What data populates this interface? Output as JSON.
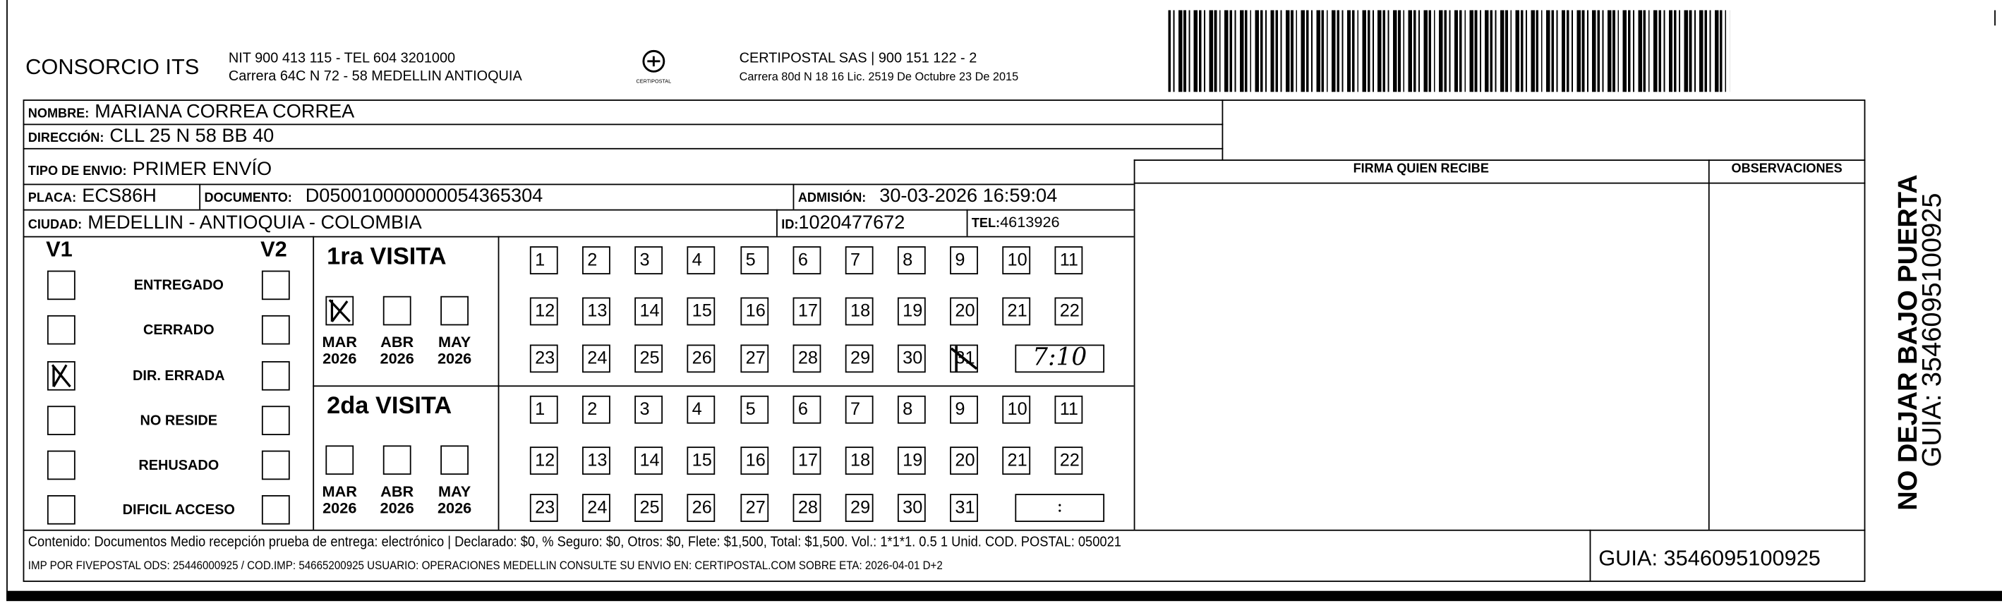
{
  "header": {
    "company": "CONSORCIO ITS",
    "company_line1": "NIT 900 413 115 - TEL 604 3201000",
    "company_line2": "Carrera 64C N 72 - 58 MEDELLIN ANTIOQUIA",
    "logo_text": "CERTIPOSTAL",
    "carrier_line1": "CERTIPOSTAL SAS | 900 151 122 - 2",
    "carrier_line2": "Carrera 80d N 18 16  Lic. 2519 De Octubre 23 De 2015",
    "barcode_icon": "barcode-icon"
  },
  "fields": {
    "nombre_label": "NOMBRE:",
    "nombre": "MARIANA CORREA CORREA",
    "direccion_label": "DIRECCIÓN:",
    "direccion": "CLL 25 N 58 BB 40",
    "tipo_label": "TIPO DE ENVIO:",
    "tipo": "PRIMER ENVÍO",
    "placa_label": "PLACA:",
    "placa": "ECS86H",
    "documento_label": "DOCUMENTO:",
    "documento": "D050010000000054365304",
    "admision_label": "ADMISIÓN:",
    "admision": "30-03-2026 16:59:04",
    "ciudad_label": "CIUDAD:",
    "ciudad": "MEDELLIN - ANTIOQUIA - COLOMBIA",
    "id_label": "ID:",
    "id": "1020477672",
    "tel_label": "TEL:",
    "tel": "4613926"
  },
  "firma_header": "FIRMA QUIEN RECIBE",
  "observaciones_header": "OBSERVACIONES",
  "status": {
    "v1_label": "V1",
    "v2_label": "V2",
    "options": [
      "ENTREGADO",
      "CERRADO",
      "DIR. ERRADA",
      "NO RESIDE",
      "REHUSADO",
      "DIFICIL ACCESO"
    ],
    "v1_checked": "DIR. ERRADA"
  },
  "visits": [
    {
      "title": "1ra VISITA",
      "months": [
        {
          "m": "MAR",
          "y": "2026"
        },
        {
          "m": "ABR",
          "y": "2026"
        },
        {
          "m": "MAY",
          "y": "2026"
        }
      ],
      "checked_month": "MAR",
      "checked_day": "31",
      "time": "7:10"
    },
    {
      "title": "2da VISITA",
      "months": [
        {
          "m": "MAR",
          "y": "2026"
        },
        {
          "m": "ABR",
          "y": "2026"
        },
        {
          "m": "MAY",
          "y": "2026"
        }
      ],
      "checked_month": "",
      "checked_day": "",
      "time": ":"
    }
  ],
  "days": [
    "1",
    "2",
    "3",
    "4",
    "5",
    "6",
    "7",
    "8",
    "9",
    "10",
    "11",
    "12",
    "13",
    "14",
    "15",
    "16",
    "17",
    "18",
    "19",
    "20",
    "21",
    "22",
    "23",
    "24",
    "25",
    "26",
    "27",
    "28",
    "29",
    "30",
    "31"
  ],
  "footer": {
    "contenido": "Contenido: Documentos Medio recepción prueba de entrega: electrónico | Declarado: $0, % Seguro: $0, Otros: $0, Flete: $1,500, Total: $1,500. Vol.: 1*1*1. 0.5  1 Unid. COD. POSTAL: 050021",
    "imp": "IMP POR FIVEPOSTAL ODS: 25446000925 / COD.IMP: 54665200925 USUARIO: OPERACIONES MEDELLIN CONSULTE SU ENVIO EN: CERTIPOSTAL.COM SOBRE ETA: 2026-04-01 D+2",
    "guia": "GUIA: 3546095100925"
  },
  "side": {
    "warning": "NO DEJAR BAJO PUERTA",
    "guia": "GUIA: 3546095100925"
  }
}
